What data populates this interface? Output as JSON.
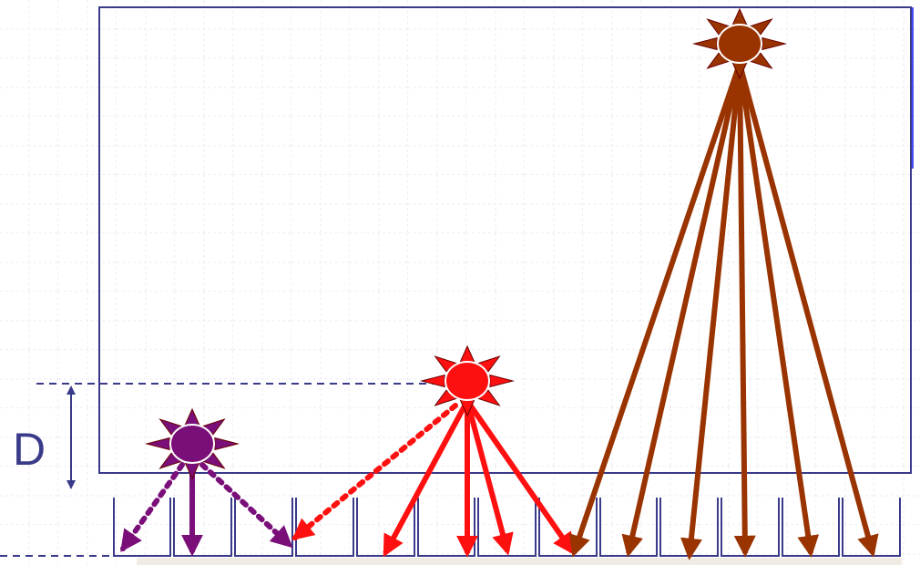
{
  "label": "D"
}
